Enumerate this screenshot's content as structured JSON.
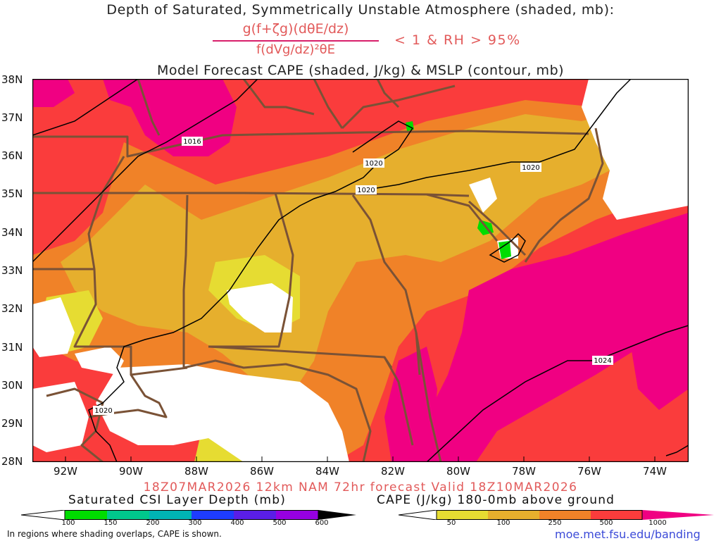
{
  "header": {
    "title": "Depth of Saturated, Symmetrically Unstable Atmosphere (shaded, mb):",
    "formula_numerator": "g(f+ζg)(dθE/dz)",
    "formula_denominator": "f(dVg/dz)²θE",
    "condition": "< 1 & RH > 95%",
    "subtitle": "Model Forecast CAPE (shaded, J/kg) & MSLP (contour, mb)"
  },
  "map": {
    "lat_labels": [
      "38N",
      "37N",
      "36N",
      "35N",
      "34N",
      "33N",
      "32N",
      "31N",
      "30N",
      "29N",
      "28N"
    ],
    "lon_labels": [
      "92W",
      "90W",
      "88W",
      "86W",
      "84W",
      "82W",
      "80W",
      "78W",
      "76W",
      "74W"
    ],
    "isobar_labels": [
      "1016",
      "1020",
      "1020",
      "1020",
      "1020",
      "1024"
    ],
    "colors": {
      "cape_50": "#e6dc32",
      "cape_100": "#e6af2d",
      "cape_250": "#f08228",
      "cape_500": "#fa3c3c",
      "cape_1000": "#f00082",
      "csi": "#00dc00",
      "state_borders": "#7a5236",
      "isobars": "#000000"
    }
  },
  "footer": {
    "forecast_valid": "18Z07MAR2026 12km NAM 72hr forecast Valid 18Z10MAR2026",
    "csi_legend_title": "Saturated CSI Layer Depth (mb)",
    "csi_legend_ticks": [
      "100",
      "150",
      "200",
      "300",
      "400",
      "500",
      "600"
    ],
    "csi_legend_colors": [
      "#ffffff",
      "#00dc00",
      "#00c88c",
      "#00b4b4",
      "#1e3cff",
      "#5a1ee6",
      "#9600e1",
      "#000000"
    ],
    "cape_legend_title": "CAPE (J/kg) 180-0mb above ground",
    "cape_legend_ticks": [
      "50",
      "100",
      "250",
      "500",
      "1000"
    ],
    "cape_legend_colors": [
      "#ffffff",
      "#e6dc32",
      "#e6af2d",
      "#f08228",
      "#fa3c3c",
      "#f00082"
    ],
    "note": "In regions where shading overlaps, CAPE is shown.",
    "url": "moe.met.fsu.edu/banding"
  }
}
